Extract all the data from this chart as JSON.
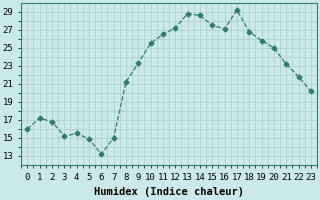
{
  "x": [
    0,
    1,
    2,
    3,
    4,
    5,
    6,
    7,
    8,
    9,
    10,
    11,
    12,
    13,
    14,
    15,
    16,
    17,
    18,
    19,
    20,
    21,
    22,
    23
  ],
  "y": [
    16.0,
    17.2,
    16.8,
    15.2,
    15.5,
    14.9,
    13.2,
    15.0,
    21.2,
    23.3,
    25.5,
    26.5,
    27.2,
    28.8,
    28.6,
    27.5,
    27.1,
    29.2,
    26.8,
    25.8,
    25.0,
    23.2,
    21.8,
    20.2
  ],
  "line_color": "#2e7d6e",
  "marker": "D",
  "marker_size": 2.5,
  "bg_color": "#cce9e9",
  "grid_color": "#b0d0d0",
  "xlabel": "Humidex (Indice chaleur)",
  "xlim": [
    -0.5,
    23.5
  ],
  "ylim": [
    12,
    30
  ],
  "yticks": [
    13,
    15,
    17,
    19,
    21,
    23,
    25,
    27,
    29
  ],
  "xtick_labels": [
    "0",
    "1",
    "2",
    "3",
    "4",
    "5",
    "6",
    "7",
    "8",
    "9",
    "10",
    "11",
    "12",
    "13",
    "14",
    "15",
    "16",
    "17",
    "18",
    "19",
    "20",
    "21",
    "22",
    "23"
  ],
  "xlabel_fontsize": 7.5,
  "tick_fontsize": 6.5
}
